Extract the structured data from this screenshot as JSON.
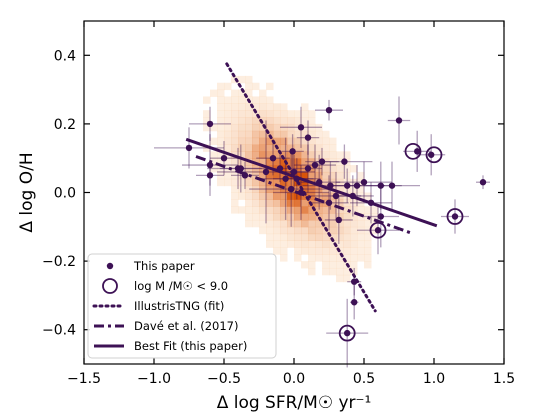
{
  "chart_data": {
    "type": "scatter",
    "title": "",
    "xlabel": "Δ log SFR/M☉ yr⁻¹",
    "ylabel": "Δ log O/H",
    "xlim": [
      -1.5,
      1.5
    ],
    "ylim": [
      -0.5,
      0.5
    ],
    "xticks": [
      -1.5,
      -1.0,
      -0.5,
      0.0,
      0.5,
      1.0,
      1.5
    ],
    "xtick_labels": [
      "−1.5",
      "−1.0",
      "−0.5",
      "0.0",
      "0.5",
      "1.0",
      "1.5"
    ],
    "yticks": [
      -0.4,
      -0.2,
      0.0,
      0.2,
      0.4
    ],
    "ytick_labels": [
      "−0.4",
      "−0.2",
      "0.0",
      "0.2",
      "0.4"
    ],
    "grid": false,
    "legend_position": "lower-left",
    "colors": {
      "points": "#3d1155",
      "lines": "#3d1155",
      "density_light": "#fde3c8",
      "density_dark": "#d8540a"
    },
    "legend": [
      {
        "label": "This paper",
        "marker": "dot"
      },
      {
        "label": "log M /M☉ < 9.0",
        "marker": "ring"
      },
      {
        "label": "IllustrisTNG (fit)",
        "marker": "dotted-line"
      },
      {
        "label": "Davé et al. (2017)",
        "marker": "dashdot-line"
      },
      {
        "label": "Best Fit (this paper)",
        "marker": "solid-line"
      }
    ],
    "background_density": {
      "center": [
        -0.02,
        0.04
      ],
      "sigma": [
        0.22,
        0.1
      ],
      "correlation": -0.55,
      "xrange": [
        -0.75,
        1.1
      ],
      "yrange": [
        -0.48,
        0.36
      ]
    },
    "lines": [
      {
        "name": "IllustrisTNG (fit)",
        "style": "dotted",
        "x": [
          -0.48,
          0.58
        ],
        "y": [
          0.375,
          -0.345
        ]
      },
      {
        "name": "Davé et al. (2017)",
        "style": "dashdot",
        "x": [
          -0.7,
          0.85
        ],
        "y": [
          0.105,
          -0.12
        ]
      },
      {
        "name": "Best Fit (this paper)",
        "style": "solid",
        "x": [
          -0.77,
          1.02
        ],
        "y": [
          0.155,
          -0.097
        ],
        "x2": 1.02,
        "y2": -0.097
      }
    ],
    "best_fit_extent": [
      -0.77,
      1.02,
      0.155,
      -0.097
    ],
    "points": [
      {
        "x": -0.75,
        "y": 0.13,
        "xerr": 0.25,
        "yerr": 0.06
      },
      {
        "x": -0.6,
        "y": 0.2,
        "xerr": 0.15,
        "yerr": 0.05
      },
      {
        "x": -0.6,
        "y": 0.08,
        "xerr": 0.2,
        "yerr": 0.09
      },
      {
        "x": -0.5,
        "y": 0.1,
        "xerr": 0.1,
        "yerr": 0.05
      },
      {
        "x": -0.6,
        "y": 0.05,
        "xerr": 0.1,
        "yerr": 0.03
      },
      {
        "x": -0.38,
        "y": 0.07,
        "xerr": 0.15,
        "yerr": 0.07
      },
      {
        "x": -0.35,
        "y": 0.05,
        "xerr": 0.1,
        "yerr": 0.04
      },
      {
        "x": -0.4,
        "y": 0.07,
        "xerr": 0.22,
        "yerr": 0.06
      },
      {
        "x": -0.2,
        "y": 0.06,
        "xerr": 0.35,
        "yerr": 0.15
      },
      {
        "x": -0.15,
        "y": 0.1,
        "xerr": 0.12,
        "yerr": 0.05
      },
      {
        "x": -0.1,
        "y": 0.07,
        "xerr": 0.1,
        "yerr": 0.04
      },
      {
        "x": -0.06,
        "y": 0.04,
        "xerr": 0.2,
        "yerr": 0.12
      },
      {
        "x": -0.02,
        "y": 0.01,
        "xerr": 0.3,
        "yerr": 0.11
      },
      {
        "x": -0.01,
        "y": 0.12,
        "xerr": 0.08,
        "yerr": 0.05
      },
      {
        "x": 0.0,
        "y": 0.06,
        "xerr": 0.1,
        "yerr": 0.05
      },
      {
        "x": 0.02,
        "y": 0.04,
        "xerr": 0.17,
        "yerr": 0.06
      },
      {
        "x": 0.05,
        "y": 0.19,
        "xerr": 0.15,
        "yerr": 0.06
      },
      {
        "x": 0.05,
        "y": 0.0,
        "xerr": 0.2,
        "yerr": 0.08
      },
      {
        "x": 0.1,
        "y": 0.16,
        "xerr": 0.08,
        "yerr": 0.05
      },
      {
        "x": 0.1,
        "y": 0.07,
        "xerr": 0.1,
        "yerr": 0.07
      },
      {
        "x": 0.15,
        "y": 0.08,
        "xerr": 0.15,
        "yerr": 0.06
      },
      {
        "x": 0.18,
        "y": 0.03,
        "xerr": 0.15,
        "yerr": 0.08
      },
      {
        "x": 0.2,
        "y": 0.09,
        "xerr": 0.12,
        "yerr": 0.04
      },
      {
        "x": 0.25,
        "y": 0.24,
        "xerr": 0.1,
        "yerr": 0.03
      },
      {
        "x": 0.25,
        "y": -0.03,
        "xerr": 0.14,
        "yerr": 0.08
      },
      {
        "x": 0.26,
        "y": 0.02,
        "xerr": 0.2,
        "yerr": 0.07
      },
      {
        "x": 0.3,
        "y": -0.01,
        "xerr": 0.18,
        "yerr": 0.07
      },
      {
        "x": 0.32,
        "y": -0.08,
        "xerr": 0.1,
        "yerr": 0.07
      },
      {
        "x": 0.36,
        "y": 0.09,
        "xerr": 0.2,
        "yerr": 0.05
      },
      {
        "x": 0.38,
        "y": 0.02,
        "xerr": 0.1,
        "yerr": 0.05
      },
      {
        "x": 0.42,
        "y": -0.01,
        "xerr": 0.15,
        "yerr": 0.06
      },
      {
        "x": 0.43,
        "y": -0.26,
        "xerr": 0.05,
        "yerr": 0.04
      },
      {
        "x": 0.43,
        "y": -0.32,
        "xerr": 0.03,
        "yerr": 0.05
      },
      {
        "x": 0.45,
        "y": 0.02,
        "xerr": 0.2,
        "yerr": 0.06
      },
      {
        "x": 0.5,
        "y": 0.03,
        "xerr": 0.2,
        "yerr": 0.06
      },
      {
        "x": 0.55,
        "y": -0.03,
        "xerr": 0.15,
        "yerr": 0.06
      },
      {
        "x": 0.62,
        "y": 0.02,
        "xerr": 0.15,
        "yerr": 0.07
      },
      {
        "x": 0.62,
        "y": -0.07,
        "xerr": 0.13,
        "yerr": 0.09
      },
      {
        "x": 0.75,
        "y": 0.21,
        "xerr": 0.08,
        "yerr": 0.07
      },
      {
        "x": 0.7,
        "y": 0.02,
        "xerr": 0.2,
        "yerr": 0.07
      },
      {
        "x": 0.88,
        "y": 0.12,
        "xerr": 0.1,
        "yerr": 0.06
      },
      {
        "x": 0.98,
        "y": 0.11,
        "xerr": 0.1,
        "yerr": 0.06
      },
      {
        "x": 0.38,
        "y": -0.41,
        "xerr": 0.15,
        "yerr": 0.1
      },
      {
        "x": 0.6,
        "y": -0.11,
        "xerr": 0.15,
        "yerr": 0.07
      },
      {
        "x": 1.15,
        "y": -0.07,
        "xerr": 0.1,
        "yerr": 0.05
      },
      {
        "x": 1.35,
        "y": 0.03,
        "xerr": 0.05,
        "yerr": 0.02
      }
    ],
    "low_mass_points": [
      {
        "x": 0.85,
        "y": 0.12
      },
      {
        "x": 1.0,
        "y": 0.11
      },
      {
        "x": 0.38,
        "y": -0.41
      },
      {
        "x": 0.6,
        "y": -0.11
      },
      {
        "x": 1.15,
        "y": -0.07
      }
    ]
  }
}
